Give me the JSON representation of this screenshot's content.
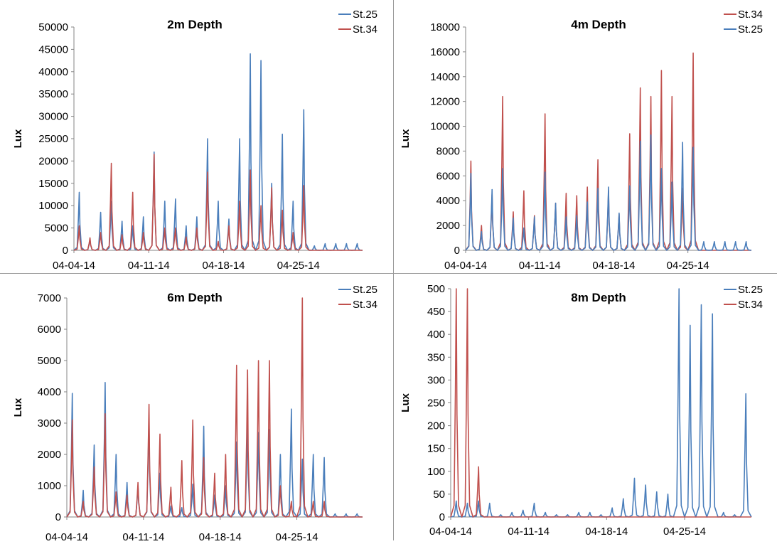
{
  "chart_data": [
    {
      "type": "line",
      "title": "2m Depth",
      "ylabel": "Lux",
      "xlabel": "",
      "ylim": [
        0,
        50000
      ],
      "yticks": [
        0,
        5000,
        10000,
        15000,
        20000,
        25000,
        30000,
        35000,
        40000,
        45000,
        50000
      ],
      "xlim": [
        "04-04-14",
        "05-01-14"
      ],
      "xticks": [
        "04-04-14",
        "04-11-14",
        "04-18-14",
        "04-25-14"
      ],
      "legend_position": "top-right",
      "series": [
        {
          "name": "St.25",
          "color": "#4a7ebb",
          "x": [
            "04-04-14",
            "04-05-14",
            "04-06-14",
            "04-07-14",
            "04-08-14",
            "04-09-14",
            "04-10-14",
            "04-11-14",
            "04-12-14",
            "04-13-14",
            "04-14-14",
            "04-15-14",
            "04-16-14",
            "04-17-14",
            "04-18-14",
            "04-19-14",
            "04-20-14",
            "04-21-14",
            "04-22-14",
            "04-23-14",
            "04-24-14",
            "04-25-14",
            "04-26-14",
            "04-27-14",
            "04-28-14",
            "04-29-14",
            "04-30-14"
          ],
          "values": [
            13000,
            2500,
            8500,
            11000,
            6500,
            5500,
            7500,
            22000,
            11000,
            11500,
            5500,
            7500,
            25000,
            11000,
            7000,
            25000,
            44000,
            42500,
            15000,
            26000,
            11000,
            31500,
            1000,
            1500,
            1500,
            1500,
            1500
          ]
        },
        {
          "name": "St.34",
          "color": "#c0504d",
          "x": [
            "04-04-14",
            "04-05-14",
            "04-06-14",
            "04-07-14",
            "04-08-14",
            "04-09-14",
            "04-10-14",
            "04-11-14",
            "04-12-14",
            "04-13-14",
            "04-14-14",
            "04-15-14",
            "04-16-14",
            "04-17-14",
            "04-18-14",
            "04-19-14",
            "04-20-14",
            "04-21-14",
            "04-22-14",
            "04-23-14",
            "04-24-14",
            "04-25-14",
            "04-26-14",
            "04-27-14",
            "04-28-14",
            "04-29-14",
            "04-30-14"
          ],
          "values": [
            5500,
            2800,
            4000,
            19500,
            3500,
            13000,
            4000,
            21500,
            5000,
            5000,
            3000,
            5000,
            17500,
            2000,
            5500,
            11000,
            18000,
            10000,
            14000,
            9000,
            4000,
            14500,
            0,
            0,
            0,
            0,
            0
          ]
        }
      ]
    },
    {
      "type": "line",
      "title": "4m Depth",
      "ylabel": "Lux",
      "xlabel": "",
      "ylim": [
        0,
        18000
      ],
      "yticks": [
        0,
        2000,
        4000,
        6000,
        8000,
        10000,
        12000,
        14000,
        16000,
        18000
      ],
      "xlim": [
        "04-04-14",
        "05-01-14"
      ],
      "xticks": [
        "04-04-14",
        "04-11-14",
        "04-18-14",
        "04-25-14"
      ],
      "legend_position": "top-right",
      "series": [
        {
          "name": "St.34",
          "color": "#c0504d",
          "x": [
            "04-04-14",
            "04-05-14",
            "04-06-14",
            "04-07-14",
            "04-08-14",
            "04-09-14",
            "04-10-14",
            "04-11-14",
            "04-12-14",
            "04-13-14",
            "04-14-14",
            "04-15-14",
            "04-16-14",
            "04-17-14",
            "04-18-14",
            "04-19-14",
            "04-20-14",
            "04-21-14",
            "04-22-14",
            "04-23-14",
            "04-24-14",
            "04-25-14",
            "04-26-14",
            "04-27-14",
            "04-28-14",
            "04-29-14",
            "04-30-14"
          ],
          "values": [
            7200,
            2000,
            4500,
            12400,
            3100,
            4800,
            2800,
            11000,
            3800,
            4600,
            4400,
            5100,
            7300,
            4800,
            2900,
            9400,
            13100,
            12400,
            14500,
            12400,
            5000,
            15900,
            0,
            0,
            0,
            0,
            0
          ]
        },
        {
          "name": "St.25",
          "color": "#4a7ebb",
          "x": [
            "04-04-14",
            "04-05-14",
            "04-06-14",
            "04-07-14",
            "04-08-14",
            "04-09-14",
            "04-10-14",
            "04-11-14",
            "04-12-14",
            "04-13-14",
            "04-14-14",
            "04-15-14",
            "04-16-14",
            "04-17-14",
            "04-18-14",
            "04-19-14",
            "04-20-14",
            "04-21-14",
            "04-22-14",
            "04-23-14",
            "04-24-14",
            "04-25-14",
            "04-26-14",
            "04-27-14",
            "04-28-14",
            "04-29-14",
            "04-30-14"
          ],
          "values": [
            6200,
            1500,
            4900,
            6600,
            2600,
            1800,
            2700,
            6300,
            3800,
            2700,
            2800,
            3900,
            5000,
            5100,
            3000,
            5200,
            8800,
            9300,
            6600,
            5500,
            8700,
            8300,
            700,
            700,
            700,
            700,
            700
          ]
        }
      ]
    },
    {
      "type": "line",
      "title": "6m Depth",
      "ylabel": "Lux",
      "xlabel": "",
      "ylim": [
        0,
        7000
      ],
      "yticks": [
        0,
        1000,
        2000,
        3000,
        4000,
        5000,
        6000,
        7000
      ],
      "xlim": [
        "04-04-14",
        "05-01-14"
      ],
      "xticks": [
        "04-04-14",
        "04-11-14",
        "04-18-14",
        "04-25-14"
      ],
      "legend_position": "top-right",
      "series": [
        {
          "name": "St.25",
          "color": "#4a7ebb",
          "x": [
            "04-04-14",
            "04-05-14",
            "04-06-14",
            "04-07-14",
            "04-08-14",
            "04-09-14",
            "04-10-14",
            "04-11-14",
            "04-12-14",
            "04-13-14",
            "04-14-14",
            "04-15-14",
            "04-16-14",
            "04-17-14",
            "04-18-14",
            "04-19-14",
            "04-20-14",
            "04-21-14",
            "04-22-14",
            "04-23-14",
            "04-24-14",
            "04-25-14",
            "04-26-14",
            "04-27-14",
            "04-28-14",
            "04-29-14",
            "04-30-14"
          ],
          "values": [
            3950,
            850,
            2300,
            4300,
            2000,
            1100,
            1000,
            3100,
            1400,
            350,
            300,
            1050,
            2900,
            700,
            1000,
            2400,
            3100,
            2700,
            2800,
            2000,
            3450,
            1850,
            2000,
            1900,
            100,
            100,
            100
          ]
        },
        {
          "name": "St.34",
          "color": "#c0504d",
          "x": [
            "04-04-14",
            "04-05-14",
            "04-06-14",
            "04-07-14",
            "04-08-14",
            "04-09-14",
            "04-10-14",
            "04-11-14",
            "04-12-14",
            "04-13-14",
            "04-14-14",
            "04-15-14",
            "04-16-14",
            "04-17-14",
            "04-18-14",
            "04-19-14",
            "04-20-14",
            "04-21-14",
            "04-22-14",
            "04-23-14",
            "04-24-14",
            "04-25-14",
            "04-26-14",
            "04-27-14",
            "04-28-14",
            "04-29-14",
            "04-30-14"
          ],
          "values": [
            3100,
            500,
            1600,
            3300,
            800,
            700,
            1100,
            3600,
            2650,
            950,
            1800,
            3100,
            1900,
            1400,
            2000,
            4850,
            4700,
            5000,
            5000,
            1000,
            500,
            7000,
            500,
            500,
            0,
            0,
            0
          ]
        }
      ]
    },
    {
      "type": "line",
      "title": "8m Depth",
      "ylabel": "Lux",
      "xlabel": "",
      "ylim": [
        0,
        500
      ],
      "yticks": [
        0,
        50,
        100,
        150,
        200,
        250,
        300,
        350,
        400,
        450,
        500
      ],
      "xlim": [
        "04-04-14",
        "05-01-14"
      ],
      "xticks": [
        "04-04-14",
        "04-11-14",
        "04-18-14",
        "04-25-14"
      ],
      "legend_position": "top-right",
      "series": [
        {
          "name": "St.25",
          "color": "#4a7ebb",
          "x": [
            "04-04-14",
            "04-05-14",
            "04-06-14",
            "04-07-14",
            "04-08-14",
            "04-09-14",
            "04-10-14",
            "04-11-14",
            "04-12-14",
            "04-13-14",
            "04-14-14",
            "04-15-14",
            "04-16-14",
            "04-17-14",
            "04-18-14",
            "04-19-14",
            "04-20-14",
            "04-21-14",
            "04-22-14",
            "04-23-14",
            "04-24-14",
            "04-25-14",
            "04-26-14",
            "04-27-14",
            "04-28-14",
            "04-29-14",
            "04-30-14"
          ],
          "values": [
            35,
            30,
            35,
            30,
            5,
            10,
            15,
            30,
            10,
            5,
            5,
            10,
            10,
            5,
            20,
            40,
            85,
            70,
            55,
            50,
            500,
            420,
            465,
            445,
            10,
            5,
            270
          ]
        },
        {
          "name": "St.34",
          "color": "#c0504d",
          "x": [
            "04-04-14",
            "04-05-14",
            "04-06-14",
            "04-07-14",
            "04-08-14",
            "04-09-14",
            "04-10-14",
            "04-11-14",
            "04-12-14",
            "04-13-14",
            "04-14-14",
            "04-15-14",
            "04-16-14",
            "04-17-14",
            "04-18-14",
            "04-19-14",
            "04-20-14",
            "04-21-14",
            "04-22-14",
            "04-23-14",
            "04-24-14",
            "04-25-14",
            "04-26-14",
            "04-27-14",
            "04-28-14",
            "04-29-14",
            "04-30-14"
          ],
          "values": [
            500,
            500,
            110,
            0,
            0,
            0,
            0,
            0,
            0,
            0,
            0,
            0,
            0,
            0,
            0,
            0,
            0,
            0,
            0,
            0,
            0,
            0,
            0,
            0,
            0,
            0,
            0
          ]
        }
      ]
    }
  ]
}
